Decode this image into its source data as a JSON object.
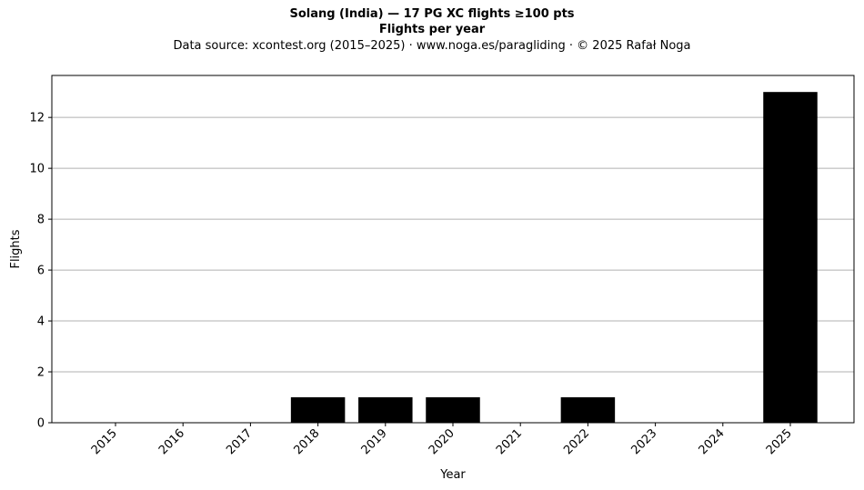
{
  "chart_data": {
    "type": "bar",
    "title": "Solang (India)  —  17 PG XC flights ≥100 pts",
    "subtitle": "Flights per year",
    "source_note": "Data source: xcontest.org (2015–2025)  ·  www.noga.es/paragliding  ·  © 2025 Rafał Noga",
    "xlabel": "Year",
    "ylabel": "Flights",
    "categories": [
      "2015",
      "2016",
      "2017",
      "2018",
      "2019",
      "2020",
      "2021",
      "2022",
      "2023",
      "2024",
      "2025"
    ],
    "values": [
      0,
      0,
      0,
      1,
      1,
      1,
      0,
      1,
      0,
      0,
      13
    ],
    "ylim": [
      0,
      13.65
    ],
    "yticks": [
      0,
      2,
      4,
      6,
      8,
      10,
      12
    ],
    "grid": "y-major",
    "bar_color": "#000000",
    "grid_color": "#b0b0b0",
    "legend": "none"
  }
}
